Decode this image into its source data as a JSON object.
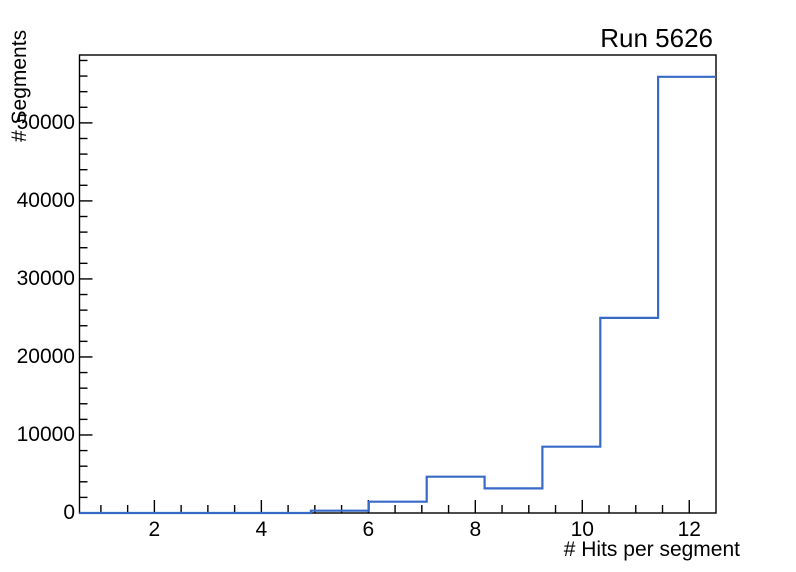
{
  "window": {
    "background_color": "#ffffff"
  },
  "chart_data": {
    "type": "histogram-step",
    "title": "Run 5626",
    "xlabel": "# Hits per segment",
    "ylabel": "# Segments",
    "x_range": [
      0.6,
      12.5
    ],
    "y_range": [
      0,
      58700
    ],
    "bin_edges": [
      0.6,
      1.682,
      2.764,
      3.845,
      4.927,
      6.009,
      7.091,
      8.173,
      9.255,
      10.336,
      11.418,
      12.5
    ],
    "counts": [
      0,
      0,
      0,
      0,
      300,
      1450,
      4650,
      3150,
      8500,
      25000,
      55900
    ],
    "x_major_ticks": [
      2,
      4,
      6,
      8,
      10,
      12
    ],
    "x_minor_step": 0.5,
    "y_major_ticks": [
      0,
      10000,
      20000,
      30000,
      40000,
      50000
    ],
    "y_minor_step": 2000,
    "grid": false,
    "legend": null,
    "line_color": "#3769c8",
    "axis_color": "#000000"
  }
}
